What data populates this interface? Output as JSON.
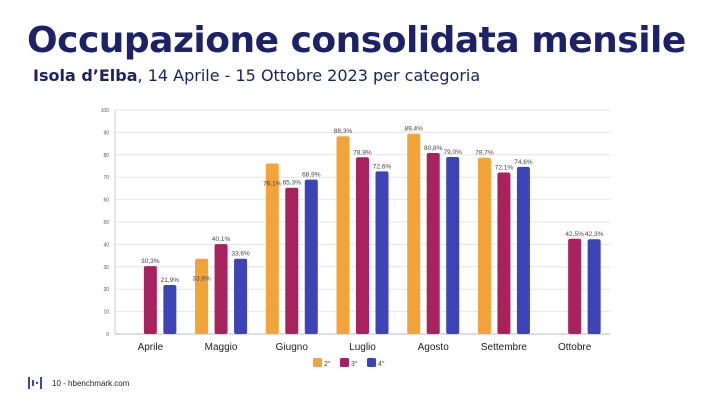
{
  "slide": {
    "title": "Occupazione consolidata mensile",
    "subtitle_bold": "Isola d’Elba",
    "subtitle_rest": ", 14 Aprile - 15 Ottobre 2023 per categoria"
  },
  "footer": {
    "page": "10",
    "separator": "-",
    "site": "hbenchmark.com",
    "logo_icon": "hbenchmark-logo-icon"
  },
  "chart_data": {
    "type": "bar",
    "categories": [
      "Aprile",
      "Maggio",
      "Giugno",
      "Luglio",
      "Agosto",
      "Settembre",
      "Ottobre"
    ],
    "series": [
      {
        "name": "2°",
        "color": "#f2a43a",
        "values": [
          null,
          33.6,
          76.1,
          88.3,
          89.4,
          78.7,
          null
        ],
        "labels": [
          "",
          "33,6%",
          "76,1%",
          "88,3%",
          "89,4%",
          "78,7%",
          ""
        ]
      },
      {
        "name": "3°",
        "color": "#a8225e",
        "values": [
          30.3,
          40.1,
          65.3,
          78.9,
          80.8,
          72.1,
          42.5
        ],
        "labels": [
          "30,3%",
          "40,1%",
          "65,3%",
          "78,9%",
          "80,8%",
          "72,1%",
          "42,5%"
        ]
      },
      {
        "name": "4°",
        "color": "#3d44b8",
        "values": [
          21.9,
          33.6,
          68.9,
          72.6,
          79.0,
          74.6,
          42.3
        ],
        "labels": [
          "21,9%",
          "33,6%",
          "68,9%",
          "72,6%",
          "79,0%",
          "74,6%",
          "42,3%"
        ]
      }
    ],
    "ylim": [
      0,
      100
    ],
    "yticks": [
      "0",
      "10",
      "20",
      "30",
      "40",
      "50",
      "60",
      "70",
      "80",
      "90",
      "100"
    ],
    "grid": true,
    "legend": "bottom-center"
  }
}
